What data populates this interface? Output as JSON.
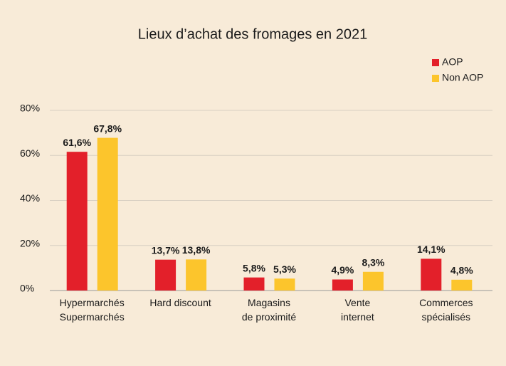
{
  "chart_data": {
    "type": "bar",
    "title": "Lieux d’achat des fromages en 2021",
    "categories": [
      "Hypermarchés\nSupermarchés",
      "Hard discount",
      "Magasins\nde proximité",
      "Vente\ninternet",
      "Commerces\nspécialisés"
    ],
    "series": [
      {
        "name": "AOP",
        "color": "#e3202a",
        "values": [
          61.6,
          13.7,
          5.8,
          4.9,
          14.1
        ],
        "value_labels": [
          "61,6%",
          "13,7%",
          "5,8%",
          "4,9%",
          "14,1%"
        ]
      },
      {
        "name": "Non AOP",
        "color": "#fcc52c",
        "values": [
          67.8,
          13.8,
          5.3,
          8.3,
          4.8
        ],
        "value_labels": [
          "67,8%",
          "13,8%",
          "5,3%",
          "8,3%",
          "4,8%"
        ]
      }
    ],
    "ylim": [
      0,
      80
    ],
    "yticks": [
      {
        "value": 0,
        "label": "0%"
      },
      {
        "value": 20,
        "label": "20%"
      },
      {
        "value": 40,
        "label": "40%"
      },
      {
        "value": 60,
        "label": "60%"
      },
      {
        "value": 80,
        "label": "80%"
      }
    ],
    "grid": true,
    "legend": "top-right"
  }
}
